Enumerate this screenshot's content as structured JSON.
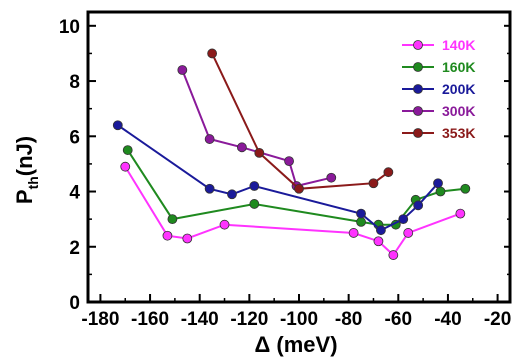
{
  "chart_data": {
    "type": "line",
    "xlabel": "Δ (meV)",
    "ylabel": {
      "main": "P",
      "sub": "th",
      "unit": "(nJ)"
    },
    "xlim": [
      -185,
      -15
    ],
    "ylim": [
      0,
      10.5
    ],
    "x_ticks": [
      -180,
      -160,
      -140,
      -120,
      -100,
      -80,
      -60,
      -40,
      -20
    ],
    "y_ticks": [
      0,
      2,
      4,
      6,
      8,
      10
    ],
    "legend_position": "top-right",
    "grid": false,
    "series": [
      {
        "name": "140K",
        "color": "#ff33ff",
        "x": [
          -170,
          -153,
          -145,
          -130,
          -78,
          -68,
          -62,
          -56,
          -35
        ],
        "y": [
          4.9,
          2.4,
          2.3,
          2.8,
          2.5,
          2.2,
          1.7,
          2.5,
          3.2
        ]
      },
      {
        "name": "160K",
        "color": "#1f8a1f",
        "x": [
          -169,
          -151,
          -118,
          -75,
          -68,
          -61,
          -53,
          -43,
          -33
        ],
        "y": [
          5.5,
          3.0,
          3.55,
          2.9,
          2.8,
          2.8,
          3.7,
          4.0,
          4.1
        ]
      },
      {
        "name": "200K",
        "color": "#1a1a9a",
        "x": [
          -173,
          -136,
          -127,
          -118,
          -75,
          -67,
          -58,
          -52,
          -44
        ],
        "y": [
          6.4,
          4.1,
          3.9,
          4.2,
          3.2,
          2.6,
          3.0,
          3.5,
          4.3
        ]
      },
      {
        "name": "300K",
        "color": "#8a1a9a",
        "x": [
          -147,
          -136,
          -123,
          -104,
          -101,
          -87
        ],
        "y": [
          8.4,
          5.9,
          5.6,
          5.1,
          4.2,
          4.5
        ]
      },
      {
        "name": "353K",
        "color": "#8b1a1a",
        "x": [
          -135,
          -116,
          -100,
          -70,
          -64
        ],
        "y": [
          9.0,
          5.4,
          4.1,
          4.3,
          4.7
        ]
      }
    ]
  }
}
